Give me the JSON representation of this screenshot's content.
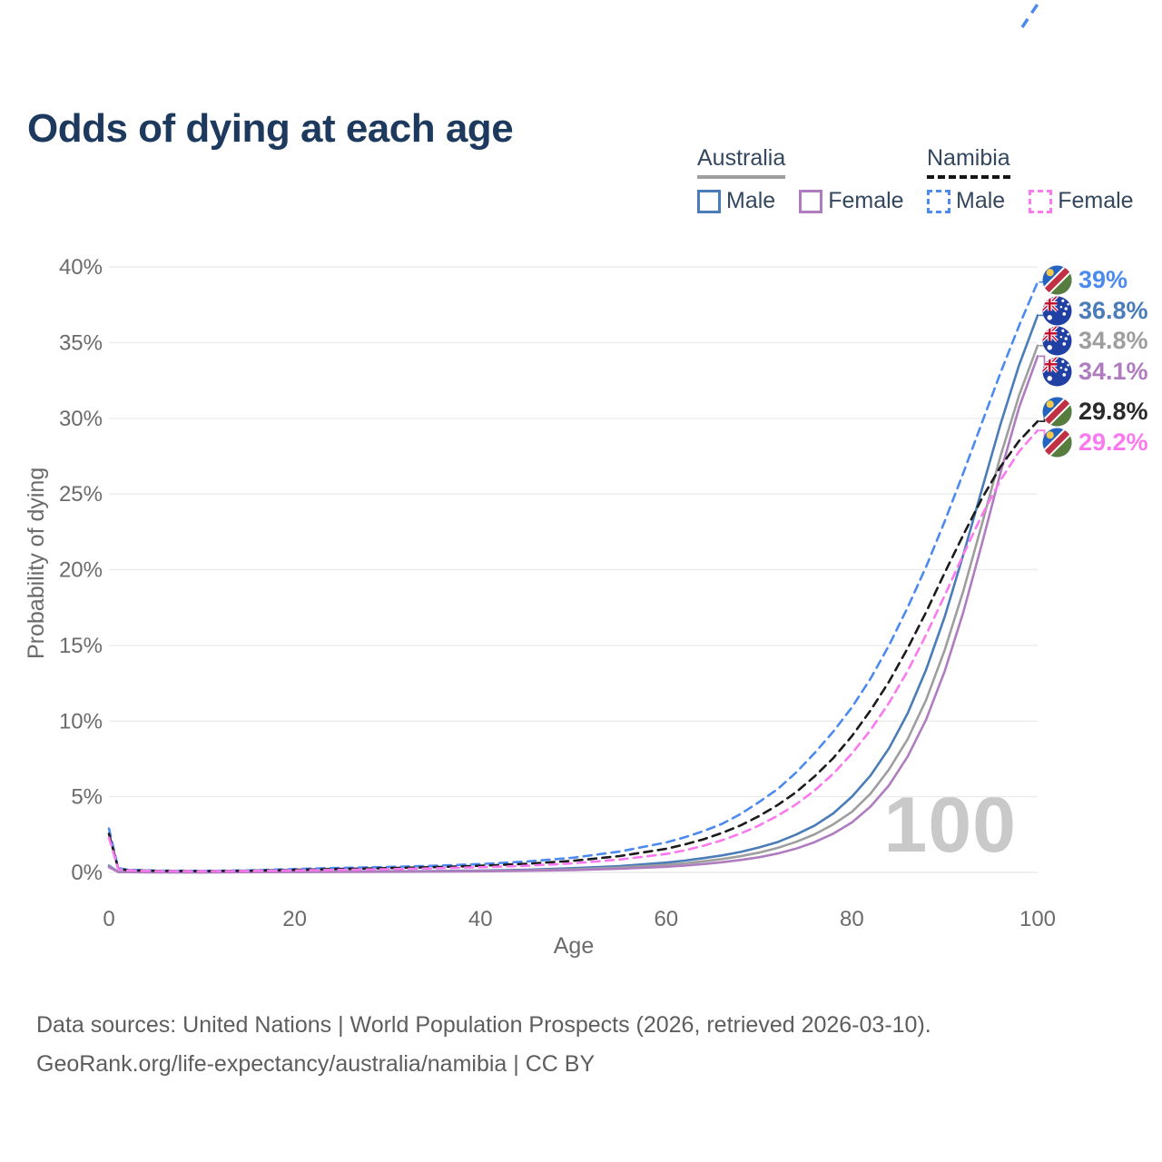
{
  "title": "Odds of dying at each age",
  "legend": {
    "australia": {
      "label": "Australia",
      "male_label": "Male",
      "female_label": "Female"
    },
    "namibia": {
      "label": "Namibia",
      "male_label": "Male",
      "female_label": "Female"
    }
  },
  "colors": {
    "australia_male": "#4a7cb8",
    "australia_both": "#9e9e9e",
    "australia_female": "#b07cc0",
    "namibia_male": "#4d8af0",
    "namibia_both": "#1c1c1c",
    "namibia_female": "#fb79ef",
    "title_text": "#1d3a5e",
    "axis_text": "#6b6b6b",
    "gridline": "#ececec",
    "watermark": "#c9c9c9"
  },
  "chart_data": {
    "type": "line",
    "title": "Odds of dying at each age",
    "xlabel": "Age",
    "ylabel": "Probability of dying",
    "xlim": [
      0,
      100
    ],
    "ylim": [
      0,
      40
    ],
    "x_ticks": [
      0,
      20,
      40,
      60,
      80,
      100
    ],
    "y_ticks": [
      "0%",
      "5%",
      "10%",
      "15%",
      "20%",
      "25%",
      "30%",
      "35%",
      "40%"
    ],
    "grid": "horizontal",
    "legend_position": "top-right",
    "watermark": "100",
    "x": [
      0,
      1,
      2,
      5,
      10,
      15,
      20,
      25,
      30,
      35,
      40,
      45,
      50,
      55,
      60,
      62,
      64,
      66,
      68,
      70,
      72,
      74,
      76,
      78,
      80,
      82,
      84,
      86,
      88,
      90,
      92,
      94,
      96,
      98,
      100
    ],
    "series": [
      {
        "id": "aus-male",
        "name": "Australia Male",
        "country": "Australia",
        "flag": "au",
        "style": "solid",
        "dash": false,
        "color": "#4a7cb8",
        "end_value_pct": 36.8,
        "values": [
          0.45,
          0.035,
          0.02,
          0.012,
          0.011,
          0.025,
          0.05,
          0.06,
          0.07,
          0.09,
          0.12,
          0.18,
          0.28,
          0.42,
          0.65,
          0.78,
          0.94,
          1.12,
          1.35,
          1.65,
          2.0,
          2.5,
          3.1,
          3.9,
          5.0,
          6.4,
          8.2,
          10.5,
          13.4,
          16.9,
          21.0,
          25.3,
          29.6,
          33.5,
          36.8
        ]
      },
      {
        "id": "aus-both",
        "name": "Australia",
        "country": "Australia",
        "flag": "au",
        "style": "solid",
        "dash": false,
        "color": "#9e9e9e",
        "end_value_pct": 34.8,
        "values": [
          0.4,
          0.03,
          0.018,
          0.01,
          0.009,
          0.02,
          0.035,
          0.045,
          0.055,
          0.07,
          0.095,
          0.14,
          0.21,
          0.32,
          0.5,
          0.6,
          0.73,
          0.88,
          1.07,
          1.31,
          1.62,
          2.02,
          2.52,
          3.17,
          4.0,
          5.2,
          6.8,
          8.8,
          11.4,
          14.7,
          18.6,
          23.0,
          27.5,
          31.5,
          34.8
        ]
      },
      {
        "id": "aus-female",
        "name": "Australia Female",
        "country": "Australia",
        "flag": "au",
        "style": "solid",
        "dash": false,
        "color": "#b07cc0",
        "end_value_pct": 34.1,
        "values": [
          0.35,
          0.028,
          0.015,
          0.009,
          0.008,
          0.015,
          0.025,
          0.032,
          0.04,
          0.052,
          0.072,
          0.105,
          0.155,
          0.24,
          0.37,
          0.45,
          0.55,
          0.67,
          0.82,
          1.0,
          1.25,
          1.57,
          2.0,
          2.56,
          3.3,
          4.35,
          5.75,
          7.65,
          10.1,
          13.3,
          17.2,
          21.7,
          26.4,
          30.7,
          34.1
        ]
      },
      {
        "id": "nam-male",
        "name": "Namibia Male",
        "country": "Namibia",
        "flag": "na",
        "style": "dashed",
        "dash": true,
        "color": "#4d8af0",
        "end_value_pct": 39.0,
        "values": [
          2.9,
          0.28,
          0.18,
          0.12,
          0.1,
          0.13,
          0.22,
          0.3,
          0.36,
          0.44,
          0.55,
          0.72,
          0.97,
          1.38,
          1.98,
          2.32,
          2.72,
          3.2,
          3.85,
          4.65,
          5.5,
          6.6,
          7.9,
          9.3,
          10.9,
          12.8,
          15.0,
          17.5,
          20.2,
          23.2,
          26.4,
          29.7,
          33.0,
          36.1,
          39.0
        ]
      },
      {
        "id": "nam-both",
        "name": "Namibia",
        "country": "Namibia",
        "flag": "na",
        "style": "dashed",
        "dash": true,
        "color": "#1c1c1c",
        "end_value_pct": 29.8,
        "values": [
          2.55,
          0.24,
          0.15,
          0.1,
          0.085,
          0.11,
          0.17,
          0.23,
          0.28,
          0.35,
          0.44,
          0.57,
          0.77,
          1.08,
          1.56,
          1.85,
          2.18,
          2.6,
          3.1,
          3.72,
          4.45,
          5.3,
          6.35,
          7.55,
          9.0,
          10.7,
          12.6,
          14.8,
          17.2,
          19.8,
          22.3,
          24.7,
          26.8,
          28.5,
          29.8
        ]
      },
      {
        "id": "nam-female",
        "name": "Namibia Female",
        "country": "Namibia",
        "flag": "na",
        "style": "dashed",
        "dash": true,
        "color": "#fb79ef",
        "end_value_pct": 29.2,
        "values": [
          2.3,
          0.21,
          0.13,
          0.09,
          0.075,
          0.095,
          0.13,
          0.17,
          0.21,
          0.27,
          0.34,
          0.44,
          0.6,
          0.85,
          1.22,
          1.46,
          1.76,
          2.12,
          2.56,
          3.1,
          3.74,
          4.5,
          5.42,
          6.52,
          7.85,
          9.4,
          11.2,
          13.3,
          15.7,
          18.3,
          21.0,
          23.6,
          25.9,
          27.8,
          29.2
        ]
      }
    ],
    "end_labels": [
      {
        "text": "39%",
        "series": "nam-male",
        "flag": "na",
        "color": "#4d8af0"
      },
      {
        "text": "36.8%",
        "series": "aus-male",
        "flag": "au",
        "color": "#4a7cb8"
      },
      {
        "text": "34.8%",
        "series": "aus-both",
        "flag": "au",
        "color": "#9e9e9e"
      },
      {
        "text": "34.1%",
        "series": "aus-female",
        "flag": "au",
        "color": "#b07cc0"
      },
      {
        "text": "29.8%",
        "series": "nam-both",
        "flag": "na",
        "color": "#2a2a2a"
      },
      {
        "text": "29.2%",
        "series": "nam-female",
        "flag": "na",
        "color": "#fb79ef"
      }
    ]
  },
  "footer": {
    "line1": "Data sources: United Nations | World Population Prospects (2026, retrieved 2026-03-10).",
    "line2": "GeoRank.org/life-expectancy/australia/namibia | CC BY"
  }
}
